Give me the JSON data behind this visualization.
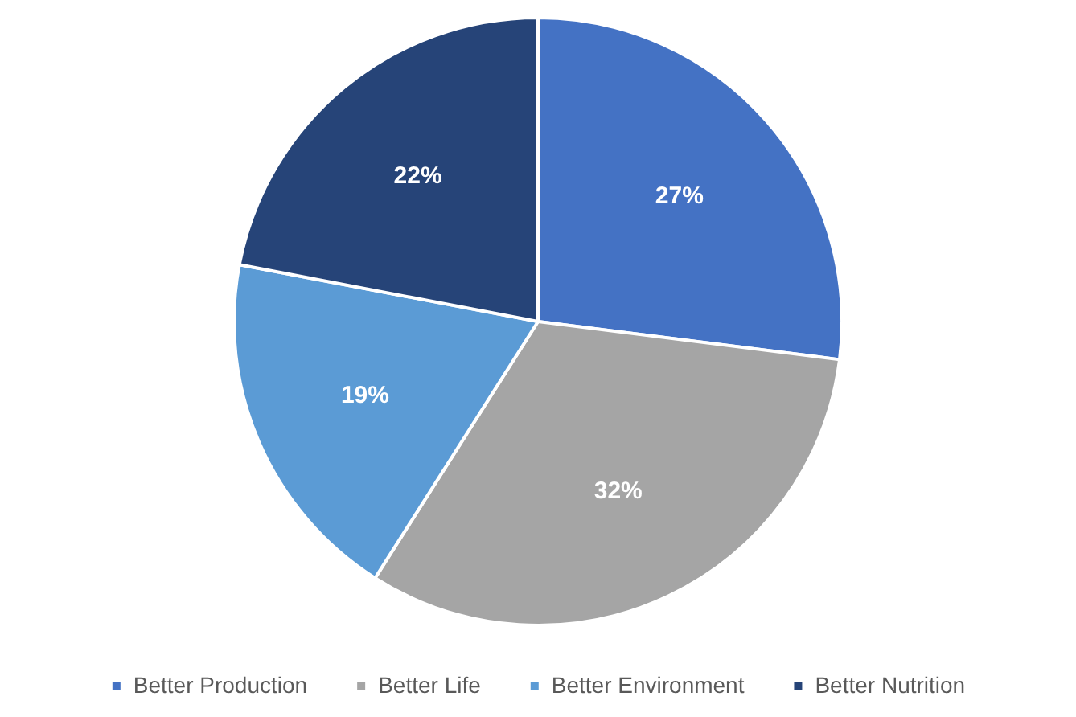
{
  "chart_data": {
    "type": "pie",
    "categories": [
      "Better Production",
      "Better Life",
      "Better Environment",
      "Better Nutrition"
    ],
    "values": [
      27,
      32,
      19,
      22
    ],
    "colors": [
      "#4472c4",
      "#a5a5a5",
      "#5b9bd5",
      "#264478"
    ],
    "value_labels": [
      "27%",
      "32%",
      "19%",
      "22%"
    ],
    "legend": "bottom"
  }
}
